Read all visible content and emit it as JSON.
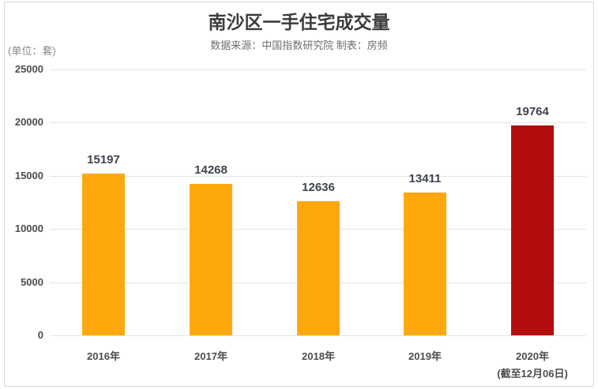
{
  "chart_data": {
    "type": "bar",
    "title": "南沙区一手住宅成交量",
    "subtitle": "数据来源：中国指数研究院 制表：房频",
    "unit_label": "(单位：套)",
    "categories": [
      "2016年",
      "2017年",
      "2018年",
      "2019年",
      "2020年"
    ],
    "category_sublabels": [
      "",
      "",
      "",
      "",
      "(截至12月06日)"
    ],
    "values": [
      15197,
      14268,
      12636,
      13411,
      19764
    ],
    "bar_colors": [
      "#FFA80C",
      "#FFA80C",
      "#FFA80C",
      "#FFA80C",
      "#B30D0D"
    ],
    "xlabel": "",
    "ylabel": "",
    "ylim": [
      0,
      25000
    ],
    "yticks": [
      0,
      5000,
      10000,
      15000,
      20000,
      25000
    ],
    "grid": "horizontal",
    "legend": "none",
    "value_labels": "above-bars"
  },
  "colors": {
    "background": "#FFFFFF",
    "border": "#D9D9D9",
    "gridline": "#E3E3E3",
    "title_text": "#3C3C3C",
    "subtitle_text": "#6E6E6E",
    "unit_text": "#8A8A8A",
    "axis_text": "#4D4D4D",
    "value_text": "#3F4450",
    "bar_orange": "#FFA80C",
    "bar_red": "#B30D0D"
  }
}
